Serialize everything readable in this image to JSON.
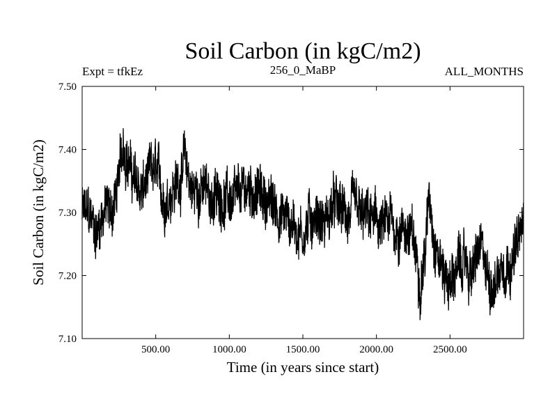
{
  "chart_data": {
    "type": "line",
    "title": "Soil Carbon (in kgC/m2)",
    "experiment": "Expt = tfkEz",
    "subtitle": "256_0_MaBP",
    "period": "ALL_MONTHS",
    "xlabel": "Time (in years since start)",
    "ylabel": "Soil Carbon (in kgC/m2)",
    "xlim": [
      0,
      3000
    ],
    "ylim": [
      7.1,
      7.5
    ],
    "x_ticks": [
      {
        "value": 500,
        "label": "500.00"
      },
      {
        "value": 1000,
        "label": "1000.00"
      },
      {
        "value": 1500,
        "label": "1500.00"
      },
      {
        "value": 2000,
        "label": "2000.00"
      },
      {
        "value": 2500,
        "label": "2500.00"
      }
    ],
    "y_ticks": [
      {
        "value": 7.1,
        "label": "7.10"
      },
      {
        "value": 7.2,
        "label": "7.20"
      },
      {
        "value": 7.3,
        "label": "7.30"
      },
      {
        "value": 7.4,
        "label": "7.40"
      },
      {
        "value": 7.5,
        "label": "7.50"
      }
    ],
    "series": [
      {
        "color": "#000000",
        "x": [
          0,
          50,
          100,
          150,
          200,
          250,
          280,
          300,
          350,
          400,
          450,
          500,
          550,
          600,
          650,
          700,
          750,
          800,
          850,
          900,
          950,
          1000,
          1050,
          1100,
          1150,
          1200,
          1250,
          1300,
          1350,
          1400,
          1450,
          1500,
          1550,
          1600,
          1650,
          1700,
          1750,
          1800,
          1850,
          1900,
          1950,
          2000,
          2050,
          2100,
          2150,
          2200,
          2250,
          2300,
          2330,
          2360,
          2400,
          2450,
          2500,
          2550,
          2600,
          2650,
          2700,
          2750,
          2800,
          2850,
          2900,
          2950,
          3000
        ],
        "y": [
          7.3,
          7.29,
          7.27,
          7.31,
          7.3,
          7.35,
          7.41,
          7.4,
          7.35,
          7.33,
          7.35,
          7.36,
          7.32,
          7.34,
          7.35,
          7.38,
          7.33,
          7.34,
          7.33,
          7.32,
          7.33,
          7.32,
          7.31,
          7.33,
          7.34,
          7.33,
          7.32,
          7.31,
          7.3,
          7.29,
          7.28,
          7.27,
          7.29,
          7.3,
          7.28,
          7.31,
          7.3,
          7.29,
          7.3,
          7.28,
          7.29,
          7.28,
          7.27,
          7.28,
          7.27,
          7.28,
          7.25,
          7.2,
          7.24,
          7.33,
          7.26,
          7.21,
          7.19,
          7.21,
          7.22,
          7.2,
          7.24,
          7.2,
          7.19,
          7.22,
          7.23,
          7.24,
          7.28
        ],
        "noise_amplitude": 0.035
      }
    ]
  }
}
